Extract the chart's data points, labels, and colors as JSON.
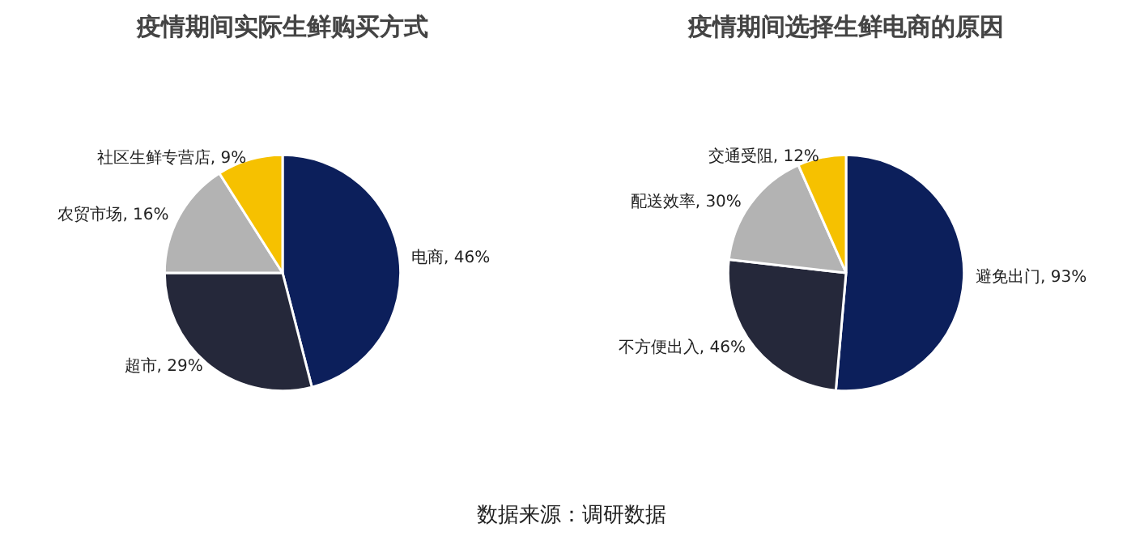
{
  "chart_data": [
    {
      "type": "pie",
      "title": "疫情期间实际生鲜购买方式",
      "categories": [
        "电商",
        "超市",
        "农贸市场",
        "社区生鲜专营店"
      ],
      "values": [
        46,
        29,
        16,
        9
      ],
      "value_labels": [
        "46%",
        "29%",
        "16%",
        "9%"
      ],
      "colors": [
        "#0c1f5b",
        "#25283a",
        "#b3b3b3",
        "#f6c100"
      ],
      "annotations": [
        "数据来源：调研数据"
      ]
    },
    {
      "type": "pie",
      "title": "疫情期间选择生鲜电商的原因",
      "categories": [
        "避免出门",
        "不方便出入",
        "配送效率",
        "交通受阻"
      ],
      "values": [
        93,
        46,
        30,
        12
      ],
      "value_labels": [
        "93%",
        "46%",
        "30%",
        "12%"
      ],
      "colors": [
        "#0c1f5b",
        "#25283a",
        "#b3b3b3",
        "#f6c100"
      ]
    }
  ]
}
